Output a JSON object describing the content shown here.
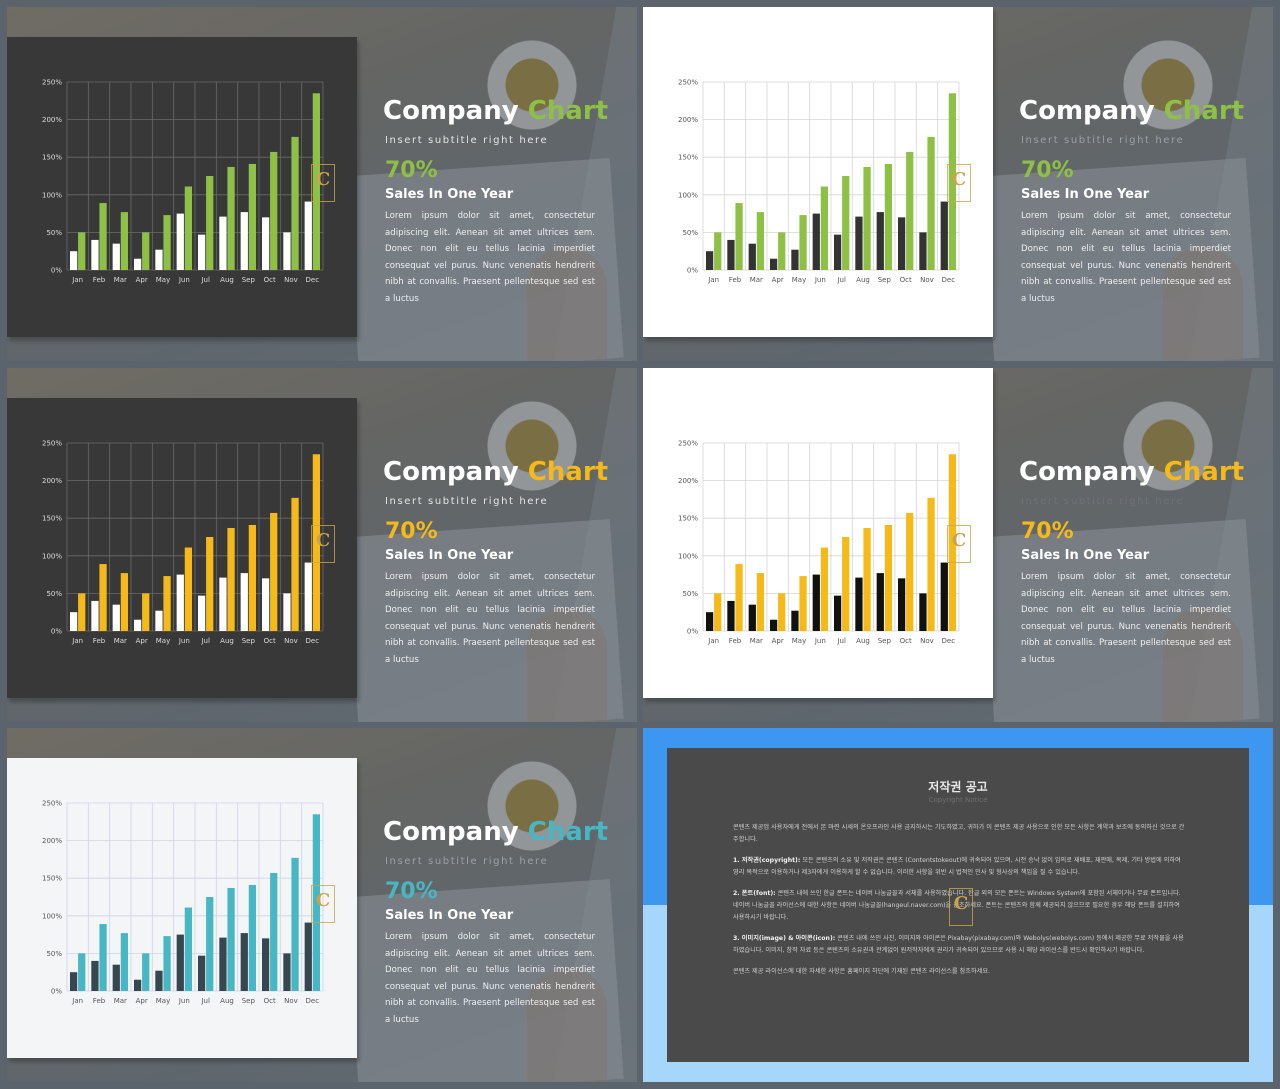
{
  "slide_common": {
    "title_a": "Company",
    "title_b": "Chart",
    "subtitle": "Insert subtitle right here",
    "percent": "70%",
    "sales": "Sales In One Year",
    "paragraph": "Lorem ipsum dolor sit amet, consectetur adipiscing elit. Aenean sit amet ultrices sem. Donec non elit eu tellus lacinia imperdiet consequat vel purus. Nunc venenatis hendrerit nibh at convallis. Praesent pellentesque sed est a luctus",
    "badge_letter": "C"
  },
  "colors": {
    "green": "#8fc046",
    "yellow": "#f5b919",
    "teal": "#48b7c4",
    "dark_bar_on_dark": "#ffffff",
    "dark_bar_on_light": "#333333",
    "card_dark": "#383838",
    "card_white": "#ffffff",
    "card_light": "#f3f5f6",
    "notice_blue": "#3d96f0",
    "notice_panel": "#4a4a4a"
  },
  "chart_data": [
    {
      "type": "bar",
      "categories": [
        "Jan",
        "Feb",
        "Mar",
        "Apr",
        "May",
        "Jun",
        "Jul",
        "Aug",
        "Sep",
        "Oct",
        "Nov",
        "Dec"
      ],
      "series": [
        {
          "values": [
            25,
            40,
            35,
            15,
            27,
            75,
            47,
            71,
            77,
            70,
            50,
            91
          ]
        },
        {
          "values": [
            50,
            89,
            77,
            50,
            73,
            111,
            125,
            137,
            141,
            157,
            177,
            235
          ]
        }
      ],
      "ylim": [
        0,
        250
      ],
      "ytick_labels": [
        "0%",
        "50%",
        "100%",
        "150%",
        "200%",
        "250%"
      ],
      "grid": true,
      "theme": "dark-green"
    },
    {
      "type": "bar",
      "categories": [
        "Jan",
        "Feb",
        "Mar",
        "Apr",
        "May",
        "Jun",
        "Jul",
        "Aug",
        "Sep",
        "Oct",
        "Nov",
        "Dec"
      ],
      "series": [
        {
          "values": [
            25,
            40,
            35,
            15,
            27,
            75,
            47,
            71,
            77,
            70,
            50,
            91
          ]
        },
        {
          "values": [
            50,
            89,
            77,
            50,
            73,
            111,
            125,
            137,
            141,
            157,
            177,
            235
          ]
        }
      ],
      "ylim": [
        0,
        250
      ],
      "ytick_labels": [
        "0%",
        "50%",
        "100%",
        "150%",
        "200%",
        "250%"
      ],
      "grid": true,
      "theme": "white-green"
    },
    {
      "type": "bar",
      "categories": [
        "Jan",
        "Feb",
        "Mar",
        "Apr",
        "May",
        "Jun",
        "Jul",
        "Aug",
        "Sep",
        "Oct",
        "Nov",
        "Dec"
      ],
      "series": [
        {
          "values": [
            25,
            40,
            35,
            15,
            27,
            75,
            47,
            71,
            77,
            70,
            50,
            91
          ]
        },
        {
          "values": [
            50,
            89,
            77,
            50,
            73,
            111,
            125,
            137,
            141,
            157,
            177,
            235
          ]
        }
      ],
      "ylim": [
        0,
        250
      ],
      "ytick_labels": [
        "0%",
        "50%",
        "100%",
        "150%",
        "200%",
        "250%"
      ],
      "grid": true,
      "theme": "dark-yellow"
    },
    {
      "type": "bar",
      "categories": [
        "Jan",
        "Feb",
        "Mar",
        "Apr",
        "May",
        "Jun",
        "Jul",
        "Aug",
        "Sep",
        "Oct",
        "Nov",
        "Dec"
      ],
      "series": [
        {
          "values": [
            25,
            40,
            35,
            15,
            27,
            75,
            47,
            71,
            77,
            70,
            50,
            91
          ]
        },
        {
          "values": [
            50,
            89,
            77,
            50,
            73,
            111,
            125,
            137,
            141,
            157,
            177,
            235
          ]
        }
      ],
      "ylim": [
        0,
        250
      ],
      "ytick_labels": [
        "0%",
        "50%",
        "100%",
        "150%",
        "200%",
        "250%"
      ],
      "grid": true,
      "theme": "white-yellow"
    },
    {
      "type": "bar",
      "categories": [
        "Jan",
        "Feb",
        "Mar",
        "Apr",
        "May",
        "Jun",
        "Jul",
        "Aug",
        "Sep",
        "Oct",
        "Nov",
        "Dec"
      ],
      "series": [
        {
          "values": [
            25,
            40,
            35,
            15,
            27,
            75,
            47,
            71,
            77,
            70,
            50,
            91
          ]
        },
        {
          "values": [
            50,
            89,
            77,
            50,
            73,
            111,
            125,
            137,
            141,
            157,
            177,
            235
          ]
        }
      ],
      "ylim": [
        0,
        250
      ],
      "ytick_labels": [
        "0%",
        "50%",
        "100%",
        "150%",
        "200%",
        "250%"
      ],
      "grid": true,
      "theme": "light-teal"
    }
  ],
  "notice": {
    "title": "저작권 공고",
    "subtitle": "Copyright Notice",
    "intro": "콘텐츠 제공업 사용자에게 전에서 본 마련 시세의 온오프라인 사용 금지하시는 기도하였고, 귀하가 이 콘텐츠 제공 사용으로 인한 모든 사항은 계약과 보조에 동의하신 것으로 간주합니다.",
    "item1_head": "1. 저작권(copyright):",
    "item1": "모든 콘텐츠의 소유 및 저작권은 콘텐츠 (Contentstokeout)에 귀속되어 있으며, 시전 승낙 없이 임의로 재배포, 재판매, 복제, 기타 방법에 의하여 영리 목적으로 이용하거나 제3자에게 이용하게 할 수 없습니다. 이러한 사항을 위반 시 법적인 민사 및 형사상의 책임을 질 수 있습니다.",
    "item2_head": "2. 폰트(font):",
    "item2": "콘텐츠 내에 쓰인 한글 폰트는 네이버 나눔글꼴과 서체를 사용하였습니다. 한글 외의 모든 폰트는 Windows System에 포함된 서체이거나 무료 폰트입니다. 네이버 나눔글꼴 라이선스에 대한 사항은 네이버 나눔글꼴(hangeul.naver.com)을 참조하세요. 폰트는 콘텐츠와 함께 제공되지 않으므로 필요한 경우 해당 폰트를 설치하여 사용하시기 바랍니다.",
    "item3_head": "3. 이미지(image) & 아이콘(icon):",
    "item3": "콘텐츠 내에 쓰인 사진, 이미지와 아이콘은 Pixabay(pixabay.com)와 Webolys(webolys.com) 등에서 제공한 무료 저작물을 사용하였습니다. 이미지, 창작 자료 등은 콘텐츠의 소유권과 관계없이 원저작자에게 권리가 귀속되어 있으므로 사용 시 해당 라이선스를 반드시 확인하시기 바랍니다.",
    "outro": "콘텐츠 제공 라이선스에 대한 자세한 사항은 홈페이지 하단에 기재된 콘텐츠 라이선스를 참조하세요."
  }
}
